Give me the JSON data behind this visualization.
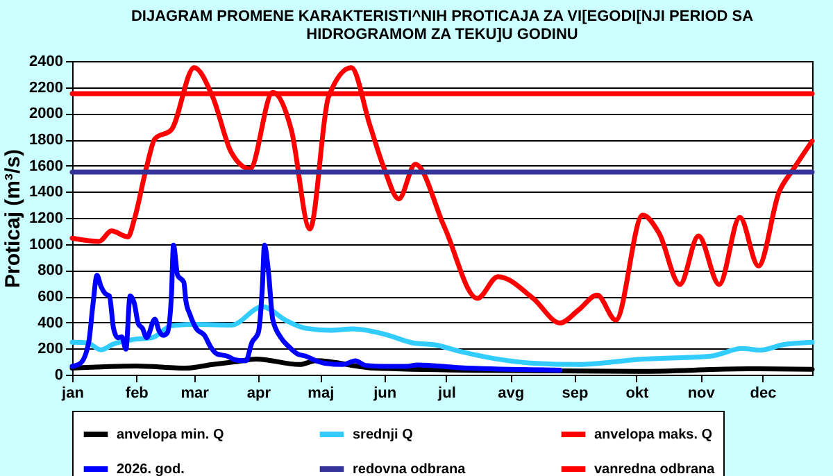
{
  "chart_data": {
    "type": "line",
    "title": "DIJAGRAM PROMENE  KARAKTERISTI^NIH  PROTICAJA ZA VI[EGODI[NJI PERIOD  SA HIDROGRAMOM  ZA TEKU]U  GODINU",
    "ylabel": "Proticaj (m³/s)",
    "xlim": [
      "--01-01",
      "--12-25"
    ],
    "xticks": [
      {
        "value": "--01-01",
        "label": "jan"
      },
      {
        "value": "--02-01",
        "label": "feb"
      },
      {
        "value": "--03-01",
        "label": "mar"
      },
      {
        "value": "--04-01",
        "label": "apr"
      },
      {
        "value": "--05-01",
        "label": "maj"
      },
      {
        "value": "--06-01",
        "label": "jun"
      },
      {
        "value": "--07-01",
        "label": "jul"
      },
      {
        "value": "--08-01",
        "label": "avg"
      },
      {
        "value": "--09-01",
        "label": "sep"
      },
      {
        "value": "--10-01",
        "label": "okt"
      },
      {
        "value": "--11-01",
        "label": "nov"
      },
      {
        "value": "--12-01",
        "label": "dec"
      }
    ],
    "ylim": [
      0,
      2400
    ],
    "yticks": [
      0,
      200,
      400,
      600,
      800,
      1000,
      1200,
      1400,
      1600,
      1800,
      2000,
      2200,
      2400
    ],
    "grid": "y",
    "legend": "bottom",
    "line_style": "solid",
    "marker": "none",
    "series": [
      {
        "name": "anvelopa min. Q",
        "color": "#000000",
        "x": [
          "--01-01",
          "--02-01",
          "--02-25",
          "--03-10",
          "--03-21",
          "--03-31",
          "--04-21",
          "--04-29",
          "--05-27",
          "--07-18",
          "--10-02",
          "--11-24",
          "--12-25"
        ],
        "values": [
          50,
          66,
          50,
          78,
          99,
          120,
          78,
          107,
          50,
          33,
          25,
          45,
          41
        ]
      },
      {
        "name": "srednji Q",
        "color": "#33ccff",
        "x": [
          "--01-01",
          "--01-08",
          "--01-15",
          "--01-21",
          "--01-31",
          "--02-09",
          "--02-18",
          "--03-01",
          "--03-19",
          "--04-03",
          "--04-15",
          "--04-24",
          "--05-06",
          "--05-17",
          "--06-01",
          "--06-16",
          "--06-25",
          "--07-08",
          "--07-24",
          "--08-12",
          "--09-03",
          "--10-02",
          "--11-06",
          "--11-21",
          "--11-30",
          "--12-11",
          "--12-25"
        ],
        "values": [
          248,
          245,
          190,
          235,
          270,
          285,
          375,
          385,
          380,
          520,
          410,
          355,
          340,
          350,
          310,
          240,
          230,
          177,
          124,
          88,
          78,
          117,
          142,
          200,
          188,
          230,
          248
        ]
      },
      {
        "name": "anvelopa maks. Q",
        "color": "#ff0000",
        "x": [
          "--01-01",
          "--01-14",
          "--01-20",
          "--01-28",
          "--01-31",
          "--02-06",
          "--02-10",
          "--02-18",
          "--03-01",
          "--03-10",
          "--03-19",
          "--03-28",
          "--04-08",
          "--04-17",
          "--04-26",
          "--05-05",
          "--05-16",
          "--05-25",
          "--06-01",
          "--06-08",
          "--06-16",
          "--06-30",
          "--07-16",
          "--07-26",
          "--08-12",
          "--08-25",
          "--09-03",
          "--09-12",
          "--09-21",
          "--10-04",
          "--10-12",
          "--10-22",
          "--10-31",
          "--11-10",
          "--11-20",
          "--11-29",
          "--12-09",
          "--12-16",
          "--12-25"
        ],
        "values": [
          1045,
          1020,
          1100,
          1055,
          1185,
          1590,
          1805,
          1875,
          2350,
          2125,
          1700,
          1575,
          2160,
          1875,
          1115,
          2125,
          2350,
          1910,
          1575,
          1345,
          1610,
          1133,
          584,
          750,
          584,
          396,
          496,
          609,
          418,
          1221,
          1080,
          690,
          1062,
          690,
          1204,
          832,
          1398,
          1575,
          1788
        ]
      },
      {
        "name": "2026. god.",
        "color": "#0000ff",
        "x": [
          "--01-01",
          "--01-05",
          "--01-09",
          "--01-11",
          "--01-13",
          "--01-15",
          "--01-17",
          "--01-19",
          "--01-21",
          "--01-23",
          "--01-25",
          "--01-27",
          "--01-29",
          "--01-31",
          "--02-02",
          "--02-04",
          "--02-06",
          "--02-10",
          "--02-12",
          "--02-14",
          "--02-16",
          "--02-18",
          "--02-19",
          "--02-21",
          "--02-24",
          "--02-25",
          "--02-27",
          "--03-02",
          "--03-06",
          "--03-09",
          "--03-12",
          "--03-17",
          "--03-21",
          "--03-26",
          "--03-29",
          "--04-01",
          "--04-03",
          "--04-04",
          "--04-06",
          "--04-08",
          "--04-12",
          "--04-16",
          "--04-20",
          "--04-24",
          "--04-29",
          "--05-03",
          "--05-12",
          "--05-18",
          "--05-23",
          "--06-01",
          "--06-12",
          "--06-17",
          "--07-08",
          "--08-25"
        ],
        "values": [
          64,
          88,
          248,
          531,
          761,
          672,
          620,
          602,
          354,
          283,
          290,
          195,
          602,
          549,
          389,
          354,
          283,
          425,
          336,
          301,
          319,
          602,
          991,
          761,
          708,
          566,
          460,
          354,
          301,
          212,
          159,
          142,
          113,
          106,
          248,
          319,
          672,
          991,
          779,
          425,
          283,
          212,
          159,
          142,
          106,
          88,
          78,
          106,
          71,
          64,
          64,
          75,
          53,
          35
        ]
      },
      {
        "name": "redovna odbrana",
        "color": "#333399",
        "x": [
          "--01-01",
          "--12-25"
        ],
        "values": [
          1550,
          1550
        ]
      },
      {
        "name": "vanredna odbrana",
        "color": "#ff0000",
        "x": [
          "--01-01",
          "--12-25"
        ],
        "values": [
          2150,
          2150
        ]
      }
    ]
  }
}
